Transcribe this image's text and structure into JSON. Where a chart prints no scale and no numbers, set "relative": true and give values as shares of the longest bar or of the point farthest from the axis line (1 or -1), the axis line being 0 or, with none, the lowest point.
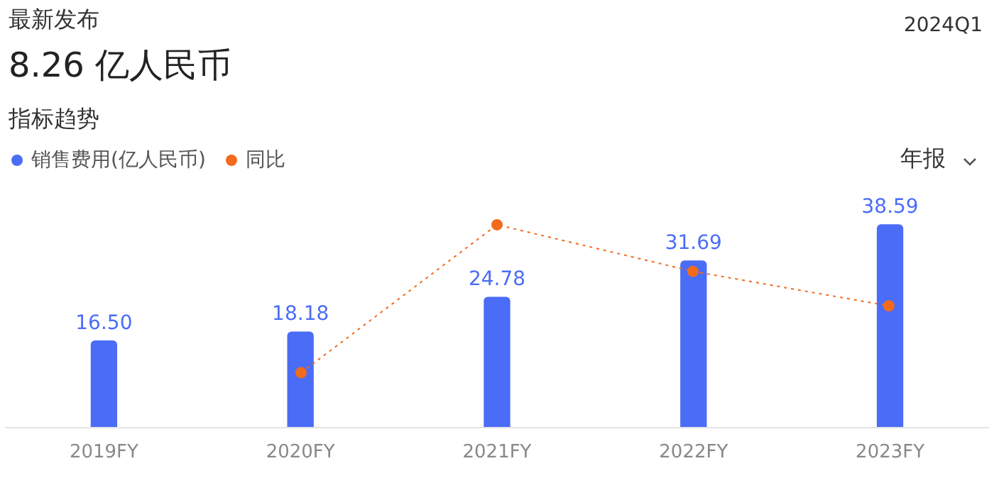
{
  "chart_data": [
    {
      "type": "bar",
      "title": "最新发布",
      "subtitle": "8.26 亿人民币",
      "annotations": [
        "2024Q1",
        "指标趋势",
        "年报"
      ],
      "categories": [
        "2019FY",
        "2020FY",
        "2021FY",
        "2022FY",
        "2023FY"
      ],
      "series": [
        {
          "name": "销售费用(亿人民币)",
          "color": "#4a6cf7",
          "values": [
            16.5,
            18.18,
            24.78,
            31.69,
            38.59
          ],
          "value_labels": [
            "16.50",
            "18.18",
            "24.78",
            "31.69",
            "38.59"
          ]
        }
      ],
      "legend": "top left",
      "grid": false,
      "tick_labels": "x"
    },
    {
      "type": "line",
      "categories": [
        null,
        null,
        null,
        null,
        null
      ],
      "relative": true,
      "tick_labels": false,
      "series": [
        {
          "name": "同比",
          "color": "#f26b1d",
          "values": [
            null,
            0.27,
            1,
            0.77,
            0.6
          ]
        }
      ],
      "legend": "top left",
      "grid": false,
      "marker": "circle",
      "line_style": "dotted"
    }
  ]
}
